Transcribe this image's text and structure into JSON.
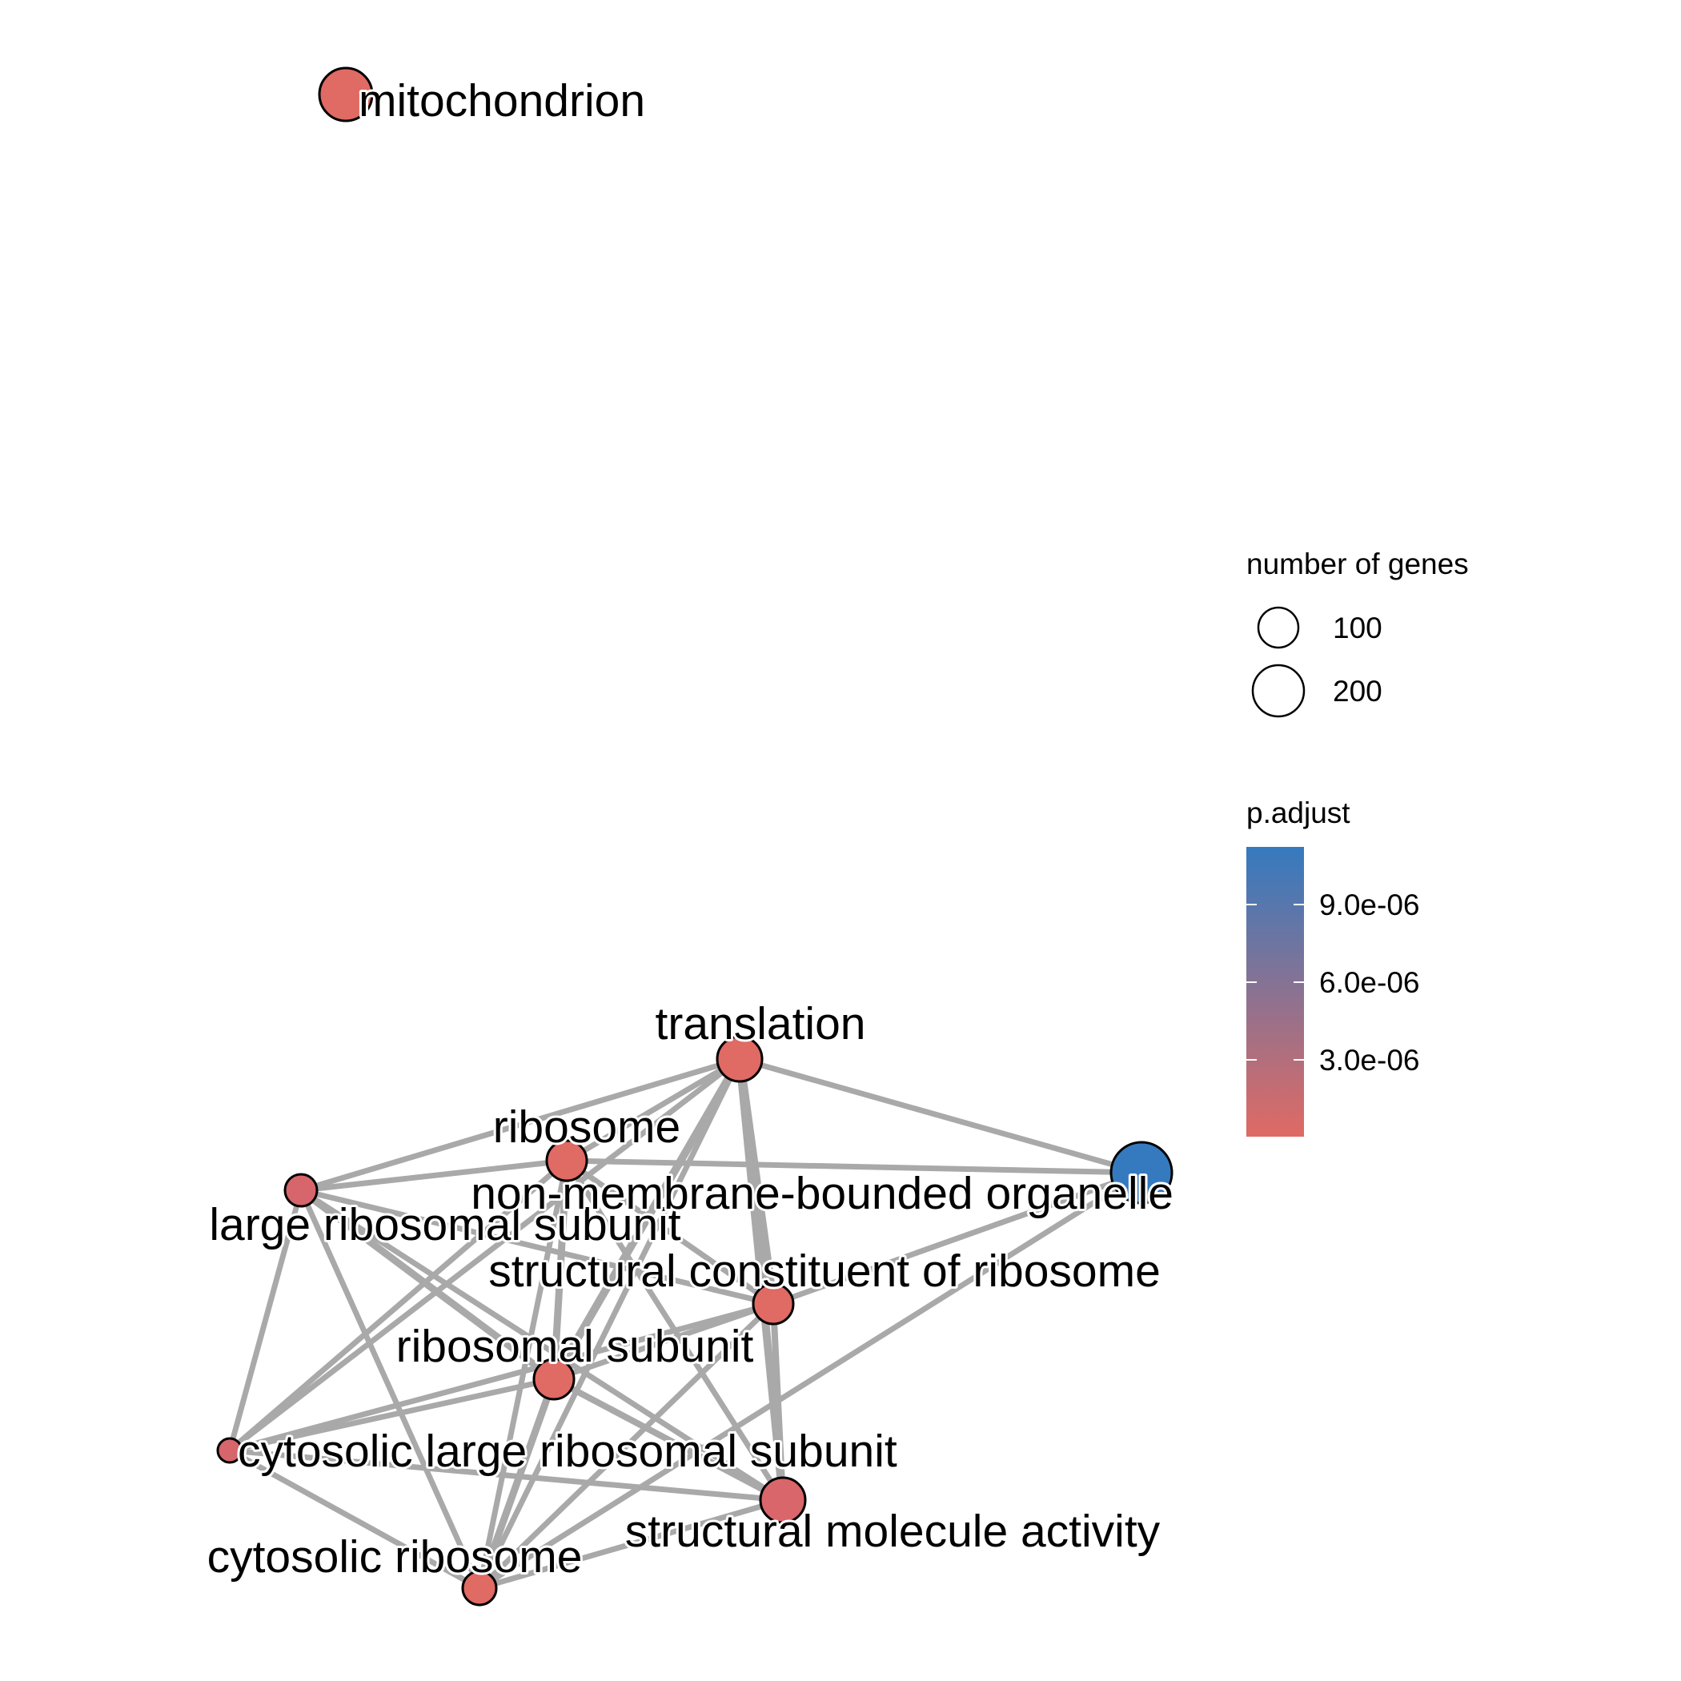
{
  "diagram": {
    "type": "enrichment-map-network",
    "nodes": [
      {
        "id": "mitochondrion",
        "label": "mitochondrion",
        "color": "#E06A64"
      },
      {
        "id": "translation",
        "label": "translation",
        "color": "#E06A64"
      },
      {
        "id": "ribosome",
        "label": "ribosome",
        "color": "#E06A64"
      },
      {
        "id": "large_ribosomal_subunit",
        "label": "large ribosomal subunit",
        "color": "#D6666C"
      },
      {
        "id": "non_membrane",
        "label": "non-membrane-bounded organelle",
        "color": "#357ABF"
      },
      {
        "id": "structural_constituent",
        "label": "structural constituent of ribosome",
        "color": "#E06A64"
      },
      {
        "id": "ribosomal_subunit",
        "label": "ribosomal subunit",
        "color": "#E06A64"
      },
      {
        "id": "cytosolic_large",
        "label": "cytosolic large ribosomal subunit",
        "color": "#D6666C"
      },
      {
        "id": "structural_molecule",
        "label": "structural molecule activity",
        "color": "#D9666A"
      },
      {
        "id": "cytosolic_ribosome",
        "label": "cytosolic ribosome",
        "color": "#E06A64"
      }
    ],
    "edges": [
      [
        "translation",
        "ribosome"
      ],
      [
        "translation",
        "large_ribosomal_subunit"
      ],
      [
        "translation",
        "non_membrane"
      ],
      [
        "translation",
        "structural_constituent"
      ],
      [
        "translation",
        "ribosomal_subunit"
      ],
      [
        "translation",
        "cytosolic_large"
      ],
      [
        "translation",
        "structural_molecule"
      ],
      [
        "translation",
        "cytosolic_ribosome"
      ],
      [
        "ribosome",
        "large_ribosomal_subunit"
      ],
      [
        "ribosome",
        "non_membrane"
      ],
      [
        "ribosome",
        "structural_constituent"
      ],
      [
        "ribosome",
        "ribosomal_subunit"
      ],
      [
        "ribosome",
        "cytosolic_large"
      ],
      [
        "ribosome",
        "structural_molecule"
      ],
      [
        "ribosome",
        "cytosolic_ribosome"
      ],
      [
        "large_ribosomal_subunit",
        "structural_constituent"
      ],
      [
        "large_ribosomal_subunit",
        "ribosomal_subunit"
      ],
      [
        "large_ribosomal_subunit",
        "cytosolic_large"
      ],
      [
        "large_ribosomal_subunit",
        "structural_molecule"
      ],
      [
        "large_ribosomal_subunit",
        "cytosolic_ribosome"
      ],
      [
        "non_membrane",
        "structural_constituent"
      ],
      [
        "non_membrane",
        "cytosolic_ribosome"
      ],
      [
        "structural_constituent",
        "ribosomal_subunit"
      ],
      [
        "structural_constituent",
        "cytosolic_large"
      ],
      [
        "structural_constituent",
        "structural_molecule"
      ],
      [
        "structural_constituent",
        "cytosolic_ribosome"
      ],
      [
        "ribosomal_subunit",
        "cytosolic_large"
      ],
      [
        "ribosomal_subunit",
        "structural_molecule"
      ],
      [
        "ribosomal_subunit",
        "cytosolic_ribosome"
      ],
      [
        "cytosolic_large",
        "structural_molecule"
      ],
      [
        "cytosolic_large",
        "cytosolic_ribosome"
      ],
      [
        "structural_molecule",
        "cytosolic_ribosome"
      ]
    ]
  },
  "legend": {
    "size_title": "number of genes",
    "size_entries": [
      "100",
      "200"
    ],
    "color_title": "p.adjust",
    "color_ticks": [
      "9.0e-06",
      "6.0e-06",
      "3.0e-06"
    ],
    "color_low": "#E06A64",
    "color_high": "#357ABF"
  }
}
